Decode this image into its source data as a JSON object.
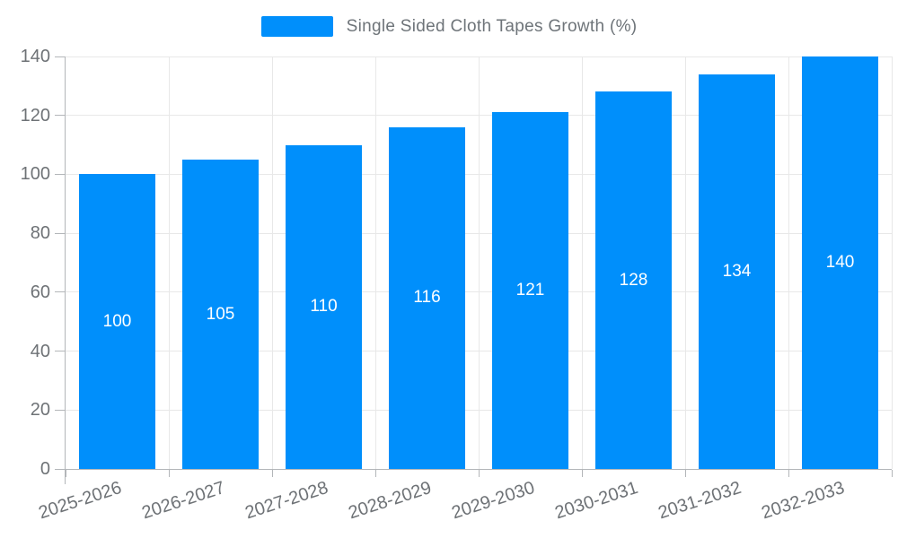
{
  "legend": {
    "marker_color": "#008FFB"
  },
  "chart_data": {
    "type": "bar",
    "title": "",
    "xlabel": "",
    "ylabel": "",
    "categories": [
      "2025-2026",
      "2026-2027",
      "2027-2028",
      "2028-2029",
      "2029-2030",
      "2030-2031",
      "2031-2032",
      "2032-2033"
    ],
    "series": [
      {
        "name": "Single Sided Cloth Tapes Growth (%)",
        "values": [
          100,
          105,
          110,
          116,
          121,
          128,
          134,
          140
        ]
      }
    ],
    "ylim": [
      0,
      140
    ],
    "ytick_step": 20,
    "ytick_labels": [
      "0",
      "20",
      "40",
      "60",
      "80",
      "100",
      "120",
      "140"
    ],
    "grid": "horizontal-and-vertical",
    "legend_position": "top",
    "bar_color": "#008FFB",
    "bar_label_color": "#ffffff",
    "axis_text_color": "#6e7276",
    "gridline_color": "#e8e8e8",
    "axis_line_color": "#b3b6b9",
    "tick_color": "#b3b6b9"
  }
}
